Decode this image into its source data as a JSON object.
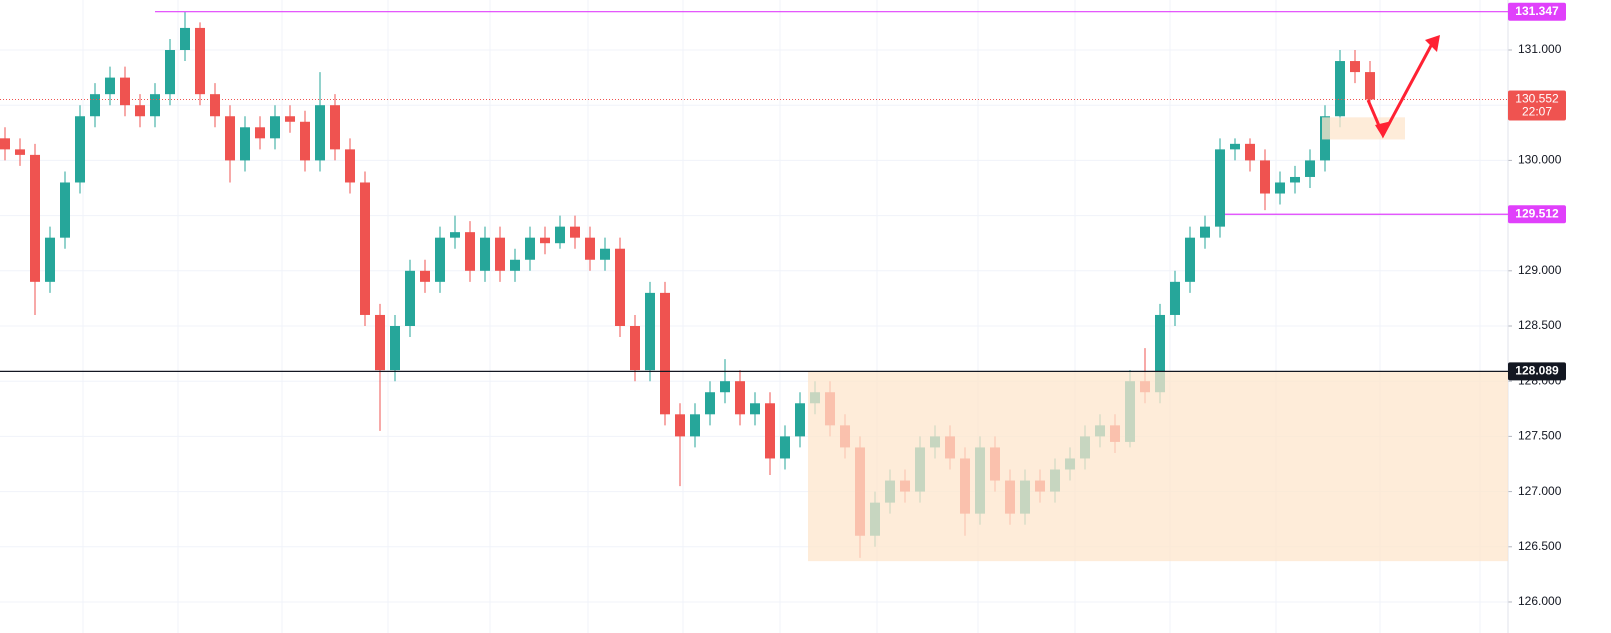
{
  "chart_data": {
    "type": "candlestick",
    "up_color": "#26a69a",
    "down_color": "#ef5350",
    "grid": true,
    "ylim": [
      125.719,
      131.453
    ],
    "yticks": [
      {
        "value": 126,
        "label": "126.000"
      },
      {
        "value": 126.5,
        "label": "126.500"
      },
      {
        "value": 127,
        "label": "127.000"
      },
      {
        "value": 127.5,
        "label": "127.500"
      },
      {
        "value": 128,
        "label": "128.000"
      },
      {
        "value": 128.5,
        "label": "128.500"
      },
      {
        "value": 129,
        "label": "129.000"
      },
      {
        "value": 129.5,
        "label": "129.500"
      },
      {
        "value": 130,
        "label": "130.000"
      },
      {
        "value": 130.5,
        "label": "130.500"
      },
      {
        "value": 131,
        "label": "131.000"
      }
    ],
    "open": [
      130.2,
      130.1,
      130.05,
      128.9,
      129.3,
      129.8,
      130.4,
      130.6,
      130.75,
      130.5,
      130.4,
      130.6,
      131.0,
      131.2,
      130.6,
      130.4,
      130.0,
      130.3,
      130.2,
      130.4,
      130.35,
      130.0,
      130.5,
      130.1,
      129.8,
      128.6,
      128.1,
      128.5,
      129.0,
      128.9,
      129.3,
      129.35,
      129.0,
      129.3,
      129.0,
      129.1,
      129.3,
      129.25,
      129.4,
      129.3,
      129.1,
      129.2,
      128.5,
      128.1,
      128.8,
      127.7,
      127.5,
      127.7,
      127.9,
      128.0,
      127.7,
      127.8,
      127.3,
      127.5,
      127.8,
      127.9,
      127.6,
      127.4,
      126.6,
      126.9,
      127.1,
      127.0,
      127.4,
      127.5,
      127.3,
      126.8,
      127.4,
      127.1,
      126.8,
      127.1,
      127.0,
      127.2,
      127.3,
      127.5,
      127.6,
      127.45,
      128.0,
      127.9,
      128.6,
      128.9,
      129.3,
      129.4,
      130.1,
      130.15,
      130.0,
      129.7,
      129.8,
      129.85,
      130.0,
      130.4,
      130.9,
      130.8
    ],
    "high": [
      130.3,
      130.2,
      130.15,
      129.4,
      129.9,
      130.5,
      130.7,
      130.85,
      130.85,
      130.6,
      130.7,
      131.1,
      131.347,
      131.25,
      130.7,
      130.5,
      130.4,
      130.4,
      130.5,
      130.5,
      130.45,
      130.8,
      130.6,
      130.2,
      129.9,
      128.7,
      128.6,
      129.1,
      129.1,
      129.4,
      129.5,
      129.45,
      129.4,
      129.4,
      129.2,
      129.4,
      129.4,
      129.5,
      129.5,
      129.4,
      129.3,
      129.3,
      128.6,
      128.9,
      128.9,
      127.8,
      127.8,
      128.0,
      128.2,
      128.1,
      127.9,
      127.9,
      127.6,
      127.9,
      128.0,
      128.0,
      127.7,
      127.5,
      127.0,
      127.2,
      127.2,
      127.5,
      127.6,
      127.6,
      127.4,
      127.5,
      127.5,
      127.2,
      127.2,
      127.2,
      127.3,
      127.4,
      127.6,
      127.7,
      127.7,
      128.1,
      128.3,
      128.7,
      129.0,
      129.4,
      129.5,
      130.2,
      130.2,
      130.2,
      130.1,
      129.9,
      129.95,
      130.1,
      130.5,
      131.0,
      131.0,
      130.9
    ],
    "low": [
      130.0,
      129.95,
      128.6,
      128.8,
      129.2,
      129.7,
      130.3,
      130.5,
      130.4,
      130.3,
      130.3,
      130.5,
      130.9,
      130.5,
      130.3,
      129.8,
      129.9,
      130.1,
      130.1,
      130.25,
      129.9,
      129.9,
      130.0,
      129.7,
      128.5,
      127.55,
      128.0,
      128.4,
      128.8,
      128.8,
      129.2,
      128.9,
      128.9,
      128.9,
      128.9,
      129.0,
      129.15,
      129.2,
      129.2,
      129.0,
      129.0,
      128.4,
      128.0,
      128.0,
      127.6,
      127.05,
      127.4,
      127.6,
      127.8,
      127.6,
      127.6,
      127.15,
      127.2,
      127.4,
      127.7,
      127.5,
      127.3,
      126.4,
      126.5,
      126.8,
      126.9,
      126.9,
      127.3,
      127.2,
      126.6,
      126.7,
      127.0,
      126.7,
      126.7,
      126.9,
      126.9,
      127.1,
      127.2,
      127.4,
      127.35,
      127.4,
      127.8,
      127.8,
      128.5,
      128.8,
      129.2,
      129.3,
      130.0,
      129.9,
      129.55,
      129.6,
      129.7,
      129.75,
      129.9,
      130.3,
      130.7,
      130.5
    ],
    "close": [
      130.1,
      130.05,
      128.9,
      129.3,
      129.8,
      130.4,
      130.6,
      130.75,
      130.5,
      130.4,
      130.6,
      131.0,
      131.2,
      130.6,
      130.4,
      130.0,
      130.3,
      130.2,
      130.4,
      130.35,
      130.0,
      130.5,
      130.1,
      129.8,
      128.6,
      128.1,
      128.5,
      129.0,
      128.9,
      129.3,
      129.35,
      129.0,
      129.3,
      129.0,
      129.1,
      129.3,
      129.25,
      129.4,
      129.3,
      129.1,
      129.2,
      128.5,
      128.1,
      128.8,
      127.7,
      127.5,
      127.7,
      127.9,
      128.0,
      127.7,
      127.8,
      127.3,
      127.5,
      127.8,
      127.9,
      127.6,
      127.4,
      126.6,
      126.9,
      127.1,
      127.0,
      127.4,
      127.5,
      127.3,
      126.8,
      127.4,
      127.1,
      126.8,
      127.1,
      127.0,
      127.2,
      127.3,
      127.5,
      127.6,
      127.45,
      128.0,
      127.9,
      128.6,
      128.9,
      129.3,
      129.4,
      130.1,
      130.15,
      130.0,
      129.7,
      129.8,
      129.85,
      130.0,
      130.4,
      130.9,
      130.8,
      130.552
    ],
    "zones": [
      {
        "top": 128.089,
        "bottom": 126.37,
        "color": "#fde6cc"
      },
      {
        "top": 130.39,
        "bottom": 130.19,
        "color": "#fde6cc"
      }
    ],
    "levels": [
      {
        "value": 131.347,
        "color": "#e040fb"
      },
      {
        "value": 129.512,
        "color": "#e040fb"
      },
      {
        "value": 128.089,
        "color": "#131722"
      }
    ],
    "last_price": {
      "value": 130.552,
      "countdown": "22:07",
      "color": "#ef5350"
    }
  }
}
